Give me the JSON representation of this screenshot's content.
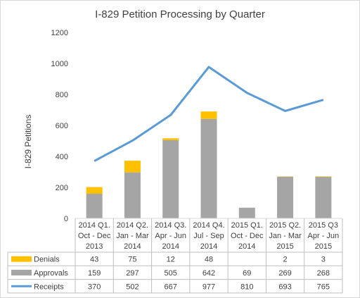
{
  "chart_data": {
    "type": "bar",
    "title": "I-829 Petition Processing by Quarter",
    "ylabel": "I-829 Petitions",
    "ylim": [
      0,
      1200
    ],
    "yticks": [
      "0",
      "200",
      "400",
      "600",
      "800",
      "1000",
      "1200"
    ],
    "categories": [
      [
        "2014 Q1.",
        "Oct - Dec",
        "2013"
      ],
      [
        "2014 Q2.",
        "Jan - Mar",
        "2014"
      ],
      [
        "2014 Q3.",
        "Apr - Jun",
        "2014"
      ],
      [
        "2014 Q4.",
        "Jul - Sep",
        "2014"
      ],
      [
        "2015 Q1.",
        "Oct - Dec",
        "2014"
      ],
      [
        "2015 Q2.",
        "Jan - Mar",
        "2015"
      ],
      [
        "2015 Q3",
        "Apr - Jun",
        "2015"
      ]
    ],
    "series": [
      {
        "name": "Denials",
        "kind": "stacked-bar",
        "color": "#ffc000",
        "values": [
          43,
          75,
          12,
          48,
          null,
          2,
          3
        ]
      },
      {
        "name": "Approvals",
        "kind": "stacked-bar",
        "color": "#a5a5a5",
        "values": [
          159,
          297,
          505,
          642,
          69,
          269,
          268
        ]
      },
      {
        "name": "Receipts",
        "kind": "line",
        "color": "#5b9bd5",
        "values": [
          370,
          502,
          667,
          977,
          810,
          693,
          765
        ]
      }
    ],
    "grid": false,
    "legend": "data-table"
  }
}
